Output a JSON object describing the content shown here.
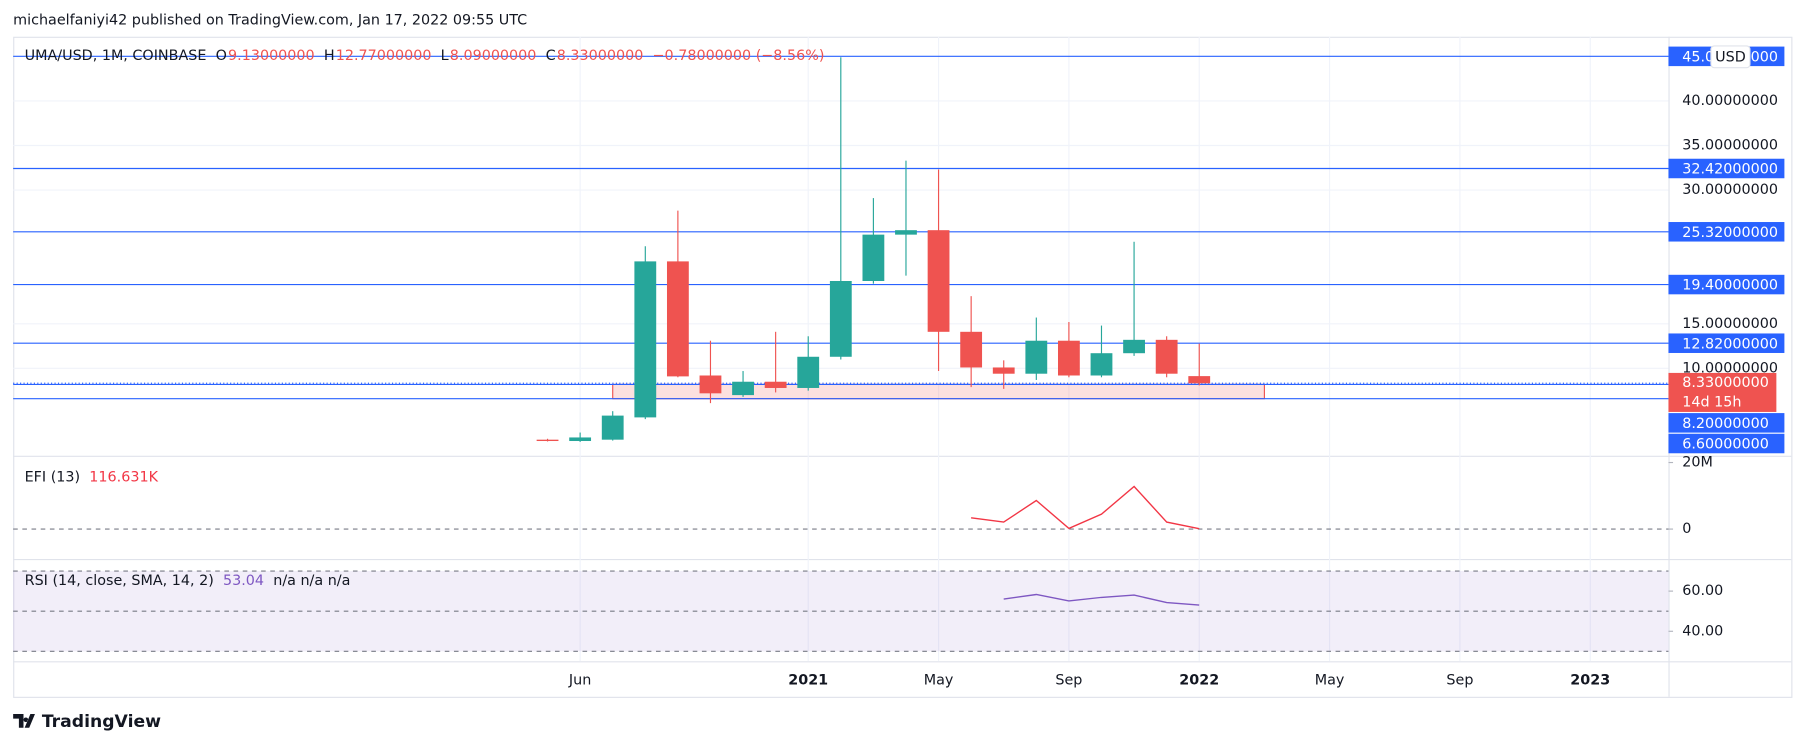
{
  "page": {
    "byline": "michaelfaniyi42 published on TradingView.com, Jan 17, 2022 09:55 UTC",
    "footer": "TradingView"
  },
  "chart_data": [
    {
      "type": "candlestick",
      "title": "UMA/USD, 1M, COINBASE",
      "ohlc_legend": [
        {
          "key": "O",
          "text": "9.13000000"
        },
        {
          "key": "H",
          "text": "12.77000000"
        },
        {
          "key": "L",
          "text": "8.09000000"
        },
        {
          "key": "C",
          "text": "8.33000000"
        }
      ],
      "change": "−0.78000000 (−8.56%)",
      "categories": [
        null,
        "Jun",
        null,
        null,
        null,
        null,
        null,
        null,
        "2021",
        null,
        null,
        null,
        "May",
        null,
        null,
        null,
        "Sep",
        null,
        null,
        null,
        "2022",
        null,
        null,
        null,
        "May",
        null,
        null,
        null,
        "Sep",
        null,
        null,
        null,
        "2023",
        null,
        null
      ],
      "open": [
        2.0,
        1.85,
        2.0,
        4.5,
        22.0,
        9.2,
        7.0,
        8.5,
        7.8,
        11.3,
        19.8,
        25.0,
        25.5,
        14.1,
        10.1,
        9.4,
        13.1,
        9.2,
        11.7,
        13.2,
        9.13,
        null,
        null,
        null,
        null,
        null,
        null,
        null,
        null,
        null,
        null,
        null,
        null,
        null,
        null
      ],
      "high": [
        2.1,
        2.8,
        5.2,
        23.7,
        27.7,
        13.1,
        9.7,
        14.1,
        13.6,
        44.9,
        29.1,
        33.3,
        32.3,
        18.1,
        10.9,
        15.7,
        15.2,
        14.8,
        24.2,
        13.6,
        12.77,
        null,
        null,
        null,
        null,
        null,
        null,
        null,
        null,
        null,
        null,
        null,
        null,
        null,
        null
      ],
      "low": [
        1.8,
        1.75,
        1.9,
        4.3,
        9.0,
        6.1,
        6.8,
        7.3,
        7.5,
        11.0,
        19.5,
        20.4,
        9.7,
        7.9,
        7.7,
        8.7,
        9.0,
        9.0,
        11.4,
        9.0,
        8.09,
        null,
        null,
        null,
        null,
        null,
        null,
        null,
        null,
        null,
        null,
        null,
        null,
        null,
        null
      ],
      "close": [
        1.85,
        2.25,
        4.7,
        22.0,
        9.1,
        7.2,
        8.5,
        7.8,
        11.3,
        19.8,
        25.0,
        25.5,
        14.1,
        10.1,
        9.4,
        13.1,
        9.2,
        11.7,
        13.2,
        9.4,
        8.33,
        null,
        null,
        null,
        null,
        null,
        null,
        null,
        null,
        null,
        null,
        null,
        null,
        null,
        null
      ],
      "up_color": "#26a69a",
      "down_color": "#ef5350",
      "xlim": [
        -16.4,
        34.4
      ],
      "ylim": [
        0.2,
        47.2
      ],
      "yticks": [
        {
          "value": 10,
          "label": "10.00000000"
        },
        {
          "value": 15,
          "label": "15.00000000"
        },
        {
          "value": 30,
          "label": "30.00000000"
        },
        {
          "value": 35,
          "label": "35.00000000"
        },
        {
          "value": 40,
          "label": "40.00000000"
        }
      ],
      "grid": true,
      "axis_unit": "USD",
      "level_color": "#2962ff",
      "levels": [
        {
          "value": 45,
          "label": "45.00000000"
        },
        {
          "value": 32.42,
          "label": "32.42000000"
        },
        {
          "value": 25.32,
          "label": "25.32000000"
        },
        {
          "value": 19.4,
          "label": "19.40000000"
        },
        {
          "value": 12.82,
          "label": "12.82000000"
        },
        {
          "value": 8.2,
          "label": "8.20000000"
        },
        {
          "value": 6.6,
          "label": "6.60000000"
        }
      ],
      "zone": {
        "x": [
          2,
          22
        ],
        "y": [
          6.6,
          8.2
        ]
      },
      "last_price": {
        "value": 8.33,
        "label": "8.33000000"
      },
      "countdown": "14d 15h"
    },
    {
      "type": "line",
      "title": "EFI (13)",
      "current": "116.631K",
      "color": "#f23645",
      "values": [
        null,
        null,
        null,
        null,
        null,
        null,
        null,
        null,
        null,
        null,
        null,
        null,
        null,
        3400000,
        2100000,
        8600000,
        200000,
        4500000,
        12800000,
        2100000,
        116631,
        null,
        null,
        null,
        null,
        null,
        null,
        null,
        null,
        null,
        null,
        null,
        null,
        null,
        null
      ],
      "ylim": [
        -9000000,
        21700000
      ],
      "yticks": [
        {
          "value": 20000000,
          "label": "20M"
        },
        0
      ],
      "baseline": 0
    },
    {
      "type": "line",
      "title": "RSI (14, close, SMA, 14, 2)",
      "current": "53.04",
      "extra": "n/a n/a n/a",
      "color": "#7e57c2",
      "values": [
        null,
        null,
        null,
        null,
        null,
        null,
        null,
        null,
        null,
        null,
        null,
        null,
        null,
        null,
        56.0,
        58.3,
        55.1,
        56.9,
        58.0,
        54.3,
        53.04,
        null,
        null,
        null,
        null,
        null,
        null,
        null,
        null,
        null,
        null,
        null,
        null,
        null,
        null
      ],
      "ylim": [
        25.1,
        75.4
      ],
      "yticks": [
        {
          "value": 60,
          "label": "60.00"
        },
        {
          "value": 40,
          "label": "40.00"
        }
      ],
      "bands": [
        70,
        50,
        30
      ]
    }
  ]
}
